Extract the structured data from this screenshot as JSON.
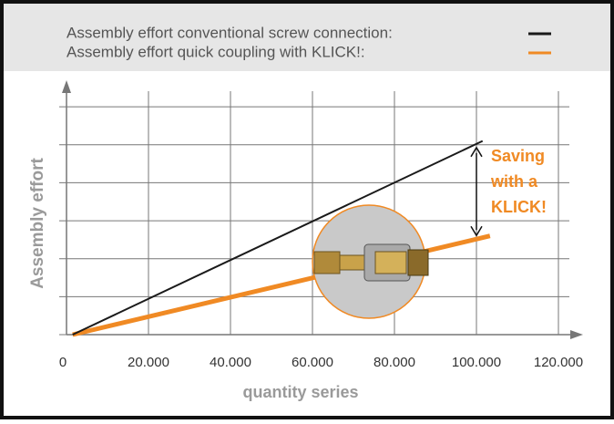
{
  "chart_data": {
    "type": "line",
    "series": [
      {
        "name": "Assembly effort conventional screw connection:",
        "color": "#1a1a1a",
        "x": [
          1500,
          101500
        ],
        "values": [
          0,
          5.1
        ]
      },
      {
        "name": "Assembly effort quick coupling with KLICK!:",
        "color": "#f08a24",
        "x": [
          1500,
          103300
        ],
        "values": [
          0,
          2.6
        ]
      }
    ],
    "xlabel": "quantity series",
    "ylabel": "Assembly effort",
    "xlim": [
      0,
      126000
    ],
    "xticks": [
      0,
      {
        "value": 20000,
        "label": "20.000"
      },
      {
        "value": 40000,
        "label": "40.000"
      },
      {
        "value": 60000,
        "label": "60.000"
      },
      {
        "value": 80000,
        "label": "80.000"
      },
      {
        "value": 100000,
        "label": "100.000"
      },
      {
        "value": 120000,
        "label": "120.000"
      }
    ],
    "ylim": [
      0,
      6.7
    ],
    "yticks": [
      0,
      1,
      2,
      3,
      4,
      5,
      6
    ],
    "grid": true,
    "annotation": {
      "lines": [
        "Saving",
        "with a",
        "KLICK!"
      ],
      "color": "#f08a24",
      "x": 100000
    }
  }
}
